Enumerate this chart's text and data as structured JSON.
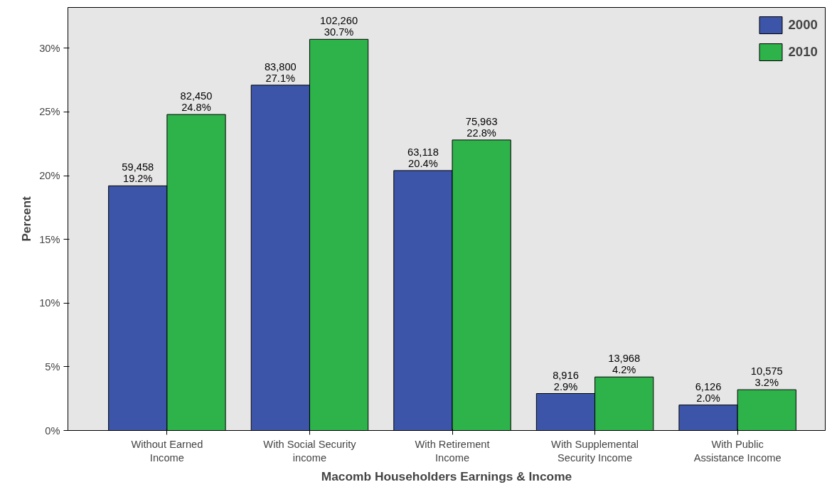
{
  "chart_data": {
    "type": "bar",
    "xlabel": "Macomb Householders Earnings & Income",
    "ylabel": "Percent",
    "categories": [
      "Without Earned\nIncome",
      "With Social Security\nincome",
      "With Retirement\nIncome",
      "With Supplemental\nSecurity Income",
      "With Public\nAssistance Income"
    ],
    "series": [
      {
        "name": "2000",
        "color": "#3c55a8",
        "values": [
          19.2,
          27.1,
          20.4,
          2.9,
          2.0
        ],
        "value_labels": [
          "59,458\n19.2%",
          "83,800\n27.1%",
          "63,118\n20.4%",
          "8,916\n2.9%",
          "6,126\n2.0%"
        ]
      },
      {
        "name": "2010",
        "color": "#2db34a",
        "values": [
          24.8,
          30.7,
          22.8,
          4.2,
          3.2
        ],
        "value_labels": [
          "82,450\n24.8%",
          "102,260\n30.7%",
          "75,963\n22.8%",
          "13,968\n4.2%",
          "10,575\n3.2%"
        ]
      }
    ],
    "ylim": [
      0,
      33.2
    ],
    "yticks": [
      {
        "value": 0,
        "label": "0%"
      },
      {
        "value": 5,
        "label": "5%"
      },
      {
        "value": 10,
        "label": "10%"
      },
      {
        "value": 15,
        "label": "15%"
      },
      {
        "value": 20,
        "label": "20%"
      },
      {
        "value": 25,
        "label": "25%"
      },
      {
        "value": 30,
        "label": "30%"
      }
    ],
    "grid": false,
    "legend": "top right"
  }
}
